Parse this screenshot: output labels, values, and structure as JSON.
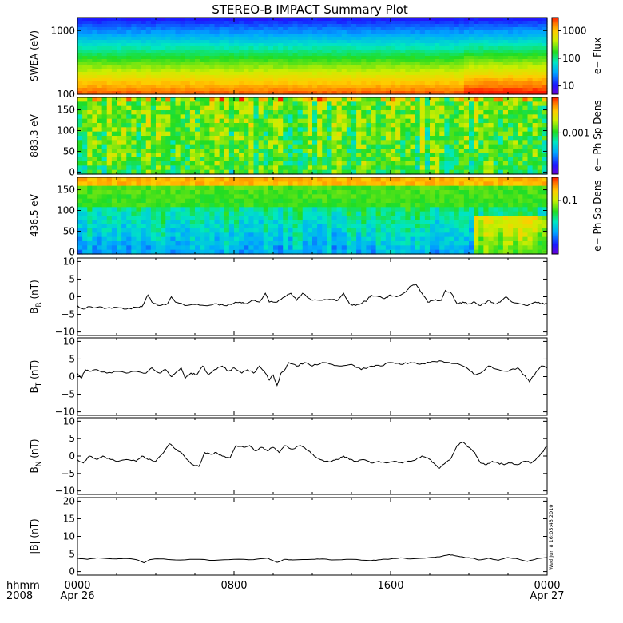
{
  "chart_data": {
    "type": "summary-plot",
    "title": "STEREO-B IMPACT Summary Plot",
    "time_axis": {
      "row_labels": [
        "hhmm",
        "2008"
      ],
      "ticks": [
        {
          "hour": 0,
          "label": "0000",
          "sublabel": "Apr 26"
        },
        {
          "hour": 8,
          "label": "0800",
          "sublabel": ""
        },
        {
          "hour": 16,
          "label": "1600",
          "sublabel": ""
        },
        {
          "hour": 24,
          "label": "0000",
          "sublabel": "Apr 27"
        }
      ],
      "range_hours": [
        0,
        24
      ]
    },
    "side_stamp": "Wed Jun 8 16:05:43 2010",
    "spectrograms": [
      {
        "id": "swea",
        "ylabel": "SWEA (eV)",
        "scale": "log",
        "ylim": [
          100,
          1600
        ],
        "yticks": [
          {
            "v": 100,
            "t": "100"
          },
          {
            "v": 1000,
            "t": "1000"
          }
        ],
        "colorbar": {
          "label": "e− Flux",
          "scale": "log",
          "range": [
            5,
            3000
          ],
          "ticks": [
            {
              "v": 10,
              "t": "10"
            },
            {
              "v": 100,
              "t": "100"
            },
            {
              "v": 1000,
              "t": "1000"
            }
          ]
        }
      },
      {
        "id": "pad883",
        "ylabel": "883.3 eV",
        "scale": "linear",
        "ylim": [
          -5,
          180
        ],
        "yticks": [
          {
            "v": 0,
            "t": "0"
          },
          {
            "v": 50,
            "t": "50"
          },
          {
            "v": 100,
            "t": "100"
          },
          {
            "v": 150,
            "t": "150"
          }
        ],
        "colorbar": {
          "label": "e− Ph Sp Dens",
          "scale": "log",
          "range": [
            0.0002,
            0.004
          ],
          "ticks": [
            {
              "v": 0.001,
              "t": "0.001"
            }
          ]
        }
      },
      {
        "id": "pad436",
        "ylabel": "436.5 eV",
        "scale": "linear",
        "ylim": [
          -5,
          180
        ],
        "yticks": [
          {
            "v": 0,
            "t": "0"
          },
          {
            "v": 50,
            "t": "50"
          },
          {
            "v": 100,
            "t": "100"
          },
          {
            "v": 150,
            "t": "150"
          }
        ],
        "colorbar": {
          "label": "e− Ph Sp Dens",
          "scale": "log",
          "range": [
            0.02,
            0.2
          ],
          "ticks": [
            {
              "v": 0.1,
              "t": "0.1"
            }
          ]
        }
      }
    ],
    "lines": [
      {
        "id": "br",
        "ylabel_main": "B",
        "ylabel_sub": "R",
        "ylabel_unit": " (nT)",
        "ylim": [
          -11,
          11
        ],
        "yticks": [
          {
            "v": -10,
            "t": "−10"
          },
          {
            "v": -5,
            "t": "−5"
          },
          {
            "v": 0,
            "t": "0"
          },
          {
            "v": 5,
            "t": "5"
          },
          {
            "v": 10,
            "t": "10"
          }
        ],
        "knots": [
          [
            0,
            -2.5
          ],
          [
            0.3,
            -3.5
          ],
          [
            0.6,
            -2.8
          ],
          [
            1,
            -3
          ],
          [
            1.5,
            -3.2
          ],
          [
            2,
            -3
          ],
          [
            2.5,
            -3.5
          ],
          [
            3,
            -3
          ],
          [
            3.3,
            -2.8
          ],
          [
            3.6,
            0.5
          ],
          [
            3.8,
            -1.5
          ],
          [
            4.2,
            -2.5
          ],
          [
            4.6,
            -2
          ],
          [
            4.8,
            0
          ],
          [
            5,
            -1.5
          ],
          [
            5.3,
            -1.8
          ],
          [
            5.5,
            -2.5
          ],
          [
            6,
            -2.2
          ],
          [
            6.5,
            -2.5
          ],
          [
            7,
            -2
          ],
          [
            7.5,
            -2.5
          ],
          [
            8,
            -1.8
          ],
          [
            8.3,
            -1.5
          ],
          [
            8.6,
            -2
          ],
          [
            9,
            -1
          ],
          [
            9.3,
            -1.5
          ],
          [
            9.6,
            1
          ],
          [
            9.8,
            -1.5
          ],
          [
            10.2,
            -1.5
          ],
          [
            10.6,
            0
          ],
          [
            10.9,
            1
          ],
          [
            11.2,
            -1
          ],
          [
            11.5,
            1
          ],
          [
            12,
            -1
          ],
          [
            12.5,
            -1
          ],
          [
            13,
            -0.8
          ],
          [
            13.3,
            -1
          ],
          [
            13.6,
            1
          ],
          [
            13.9,
            -2
          ],
          [
            14.2,
            -2.5
          ],
          [
            14.6,
            -1.5
          ],
          [
            14.8,
            -1
          ],
          [
            15,
            0.5
          ],
          [
            15.4,
            0
          ],
          [
            15.7,
            -0.5
          ],
          [
            16,
            0.5
          ],
          [
            16.3,
            0
          ],
          [
            16.8,
            1.5
          ],
          [
            17,
            3
          ],
          [
            17.3,
            3.5
          ],
          [
            17.6,
            1
          ],
          [
            17.9,
            -1.5
          ],
          [
            18.2,
            -1
          ],
          [
            18.6,
            -1
          ],
          [
            18.8,
            1.8
          ],
          [
            19.1,
            1
          ],
          [
            19.4,
            -2
          ],
          [
            19.7,
            -1.5
          ],
          [
            20,
            -2
          ],
          [
            20.3,
            -1.5
          ],
          [
            20.6,
            -2.5
          ],
          [
            21,
            -1
          ],
          [
            21.3,
            -2
          ],
          [
            21.6,
            -1.5
          ],
          [
            21.9,
            0
          ],
          [
            22.2,
            -1.5
          ],
          [
            22.6,
            -2
          ],
          [
            23,
            -2.5
          ],
          [
            23.4,
            -1.5
          ],
          [
            23.7,
            -2
          ],
          [
            24,
            -2
          ]
        ]
      },
      {
        "id": "bt",
        "ylabel_main": "B",
        "ylabel_sub": "T",
        "ylabel_unit": " (nT)",
        "ylim": [
          -11,
          11
        ],
        "yticks": [
          {
            "v": -10,
            "t": "−10"
          },
          {
            "v": -5,
            "t": "−5"
          },
          {
            "v": 0,
            "t": "0"
          },
          {
            "v": 5,
            "t": "5"
          },
          {
            "v": 10,
            "t": "10"
          }
        ],
        "knots": [
          [
            0,
            1
          ],
          [
            0.2,
            -0.5
          ],
          [
            0.4,
            2
          ],
          [
            0.6,
            1.5
          ],
          [
            1,
            2
          ],
          [
            1.5,
            1
          ],
          [
            2,
            1.5
          ],
          [
            2.5,
            1
          ],
          [
            3,
            1.5
          ],
          [
            3.5,
            1
          ],
          [
            3.8,
            2.5
          ],
          [
            4.2,
            1
          ],
          [
            4.5,
            2
          ],
          [
            4.8,
            0
          ],
          [
            5,
            1
          ],
          [
            5.3,
            2.5
          ],
          [
            5.5,
            -0.5
          ],
          [
            5.8,
            1
          ],
          [
            6.1,
            0.5
          ],
          [
            6.4,
            3
          ],
          [
            6.7,
            0.5
          ],
          [
            7,
            2
          ],
          [
            7.4,
            3
          ],
          [
            7.7,
            1.5
          ],
          [
            8,
            2.5
          ],
          [
            8.4,
            1
          ],
          [
            8.7,
            2
          ],
          [
            9,
            1
          ],
          [
            9.3,
            3
          ],
          [
            9.6,
            1
          ],
          [
            9.8,
            -1
          ],
          [
            10,
            0.5
          ],
          [
            10.2,
            -2.5
          ],
          [
            10.4,
            1
          ],
          [
            10.6,
            2
          ],
          [
            10.8,
            4
          ],
          [
            11.2,
            3
          ],
          [
            11.6,
            4
          ],
          [
            12,
            3
          ],
          [
            12.5,
            4
          ],
          [
            13,
            3.5
          ],
          [
            13.5,
            3
          ],
          [
            14,
            3.5
          ],
          [
            14.5,
            2
          ],
          [
            15,
            3
          ],
          [
            15.5,
            3
          ],
          [
            16,
            4
          ],
          [
            16.5,
            3.5
          ],
          [
            17,
            4
          ],
          [
            17.5,
            3.5
          ],
          [
            18,
            4
          ],
          [
            18.5,
            4.5
          ],
          [
            19,
            4
          ],
          [
            19.5,
            3.5
          ],
          [
            20,
            2
          ],
          [
            20.3,
            0.5
          ],
          [
            20.6,
            1
          ],
          [
            21,
            3
          ],
          [
            21.5,
            2
          ],
          [
            22,
            1.5
          ],
          [
            22.5,
            2.5
          ],
          [
            22.8,
            0.5
          ],
          [
            23.1,
            -1.5
          ],
          [
            23.4,
            1
          ],
          [
            23.7,
            3
          ],
          [
            24,
            2.5
          ]
        ]
      },
      {
        "id": "bn",
        "ylabel_main": "B",
        "ylabel_sub": "N",
        "ylabel_unit": " (nT)",
        "ylim": [
          -11,
          11
        ],
        "yticks": [
          {
            "v": -10,
            "t": "−10"
          },
          {
            "v": -5,
            "t": "−5"
          },
          {
            "v": 0,
            "t": "0"
          },
          {
            "v": 5,
            "t": "5"
          },
          {
            "v": 10,
            "t": "10"
          }
        ],
        "knots": [
          [
            0,
            -1
          ],
          [
            0.3,
            -2
          ],
          [
            0.6,
            0
          ],
          [
            1,
            -1
          ],
          [
            1.3,
            0
          ],
          [
            1.7,
            -1
          ],
          [
            2.1,
            -1.5
          ],
          [
            2.5,
            -1
          ],
          [
            3,
            -1.5
          ],
          [
            3.3,
            0
          ],
          [
            3.6,
            -1
          ],
          [
            4,
            -1.5
          ],
          [
            4.4,
            1
          ],
          [
            4.7,
            3.5
          ],
          [
            5,
            2
          ],
          [
            5.3,
            1
          ],
          [
            5.6,
            -1
          ],
          [
            5.9,
            -2.5
          ],
          [
            6.2,
            -3
          ],
          [
            6.5,
            1
          ],
          [
            6.8,
            0.5
          ],
          [
            7.1,
            1
          ],
          [
            7.4,
            0
          ],
          [
            7.8,
            -0.5
          ],
          [
            8.1,
            3
          ],
          [
            8.5,
            2.5
          ],
          [
            8.8,
            3
          ],
          [
            9.1,
            1.5
          ],
          [
            9.4,
            2.5
          ],
          [
            9.7,
            1.5
          ],
          [
            10,
            2.5
          ],
          [
            10.3,
            1
          ],
          [
            10.6,
            3
          ],
          [
            11,
            2
          ],
          [
            11.4,
            3
          ],
          [
            11.8,
            1.5
          ],
          [
            12.1,
            0
          ],
          [
            12.4,
            -1
          ],
          [
            12.7,
            -1.5
          ],
          [
            13,
            -1.5
          ],
          [
            13.3,
            -1
          ],
          [
            13.6,
            0
          ],
          [
            13.9,
            -1
          ],
          [
            14.2,
            -1.5
          ],
          [
            14.6,
            -1
          ],
          [
            15,
            -2
          ],
          [
            15.4,
            -1.5
          ],
          [
            15.8,
            -2
          ],
          [
            16.2,
            -1.5
          ],
          [
            16.6,
            -2
          ],
          [
            17,
            -1.5
          ],
          [
            17.3,
            -1
          ],
          [
            17.6,
            0
          ],
          [
            17.9,
            -0.5
          ],
          [
            18.2,
            -2
          ],
          [
            18.5,
            -3.5
          ],
          [
            18.8,
            -2
          ],
          [
            19.1,
            -0.5
          ],
          [
            19.4,
            3
          ],
          [
            19.7,
            4
          ],
          [
            20,
            2.5
          ],
          [
            20.3,
            1
          ],
          [
            20.6,
            -2
          ],
          [
            20.9,
            -2.5
          ],
          [
            21.2,
            -1.5
          ],
          [
            21.5,
            -2
          ],
          [
            21.8,
            -2.5
          ],
          [
            22.1,
            -2
          ],
          [
            22.5,
            -2.5
          ],
          [
            22.9,
            -1.5
          ],
          [
            23.2,
            -2
          ],
          [
            23.6,
            0
          ],
          [
            24,
            3
          ]
        ]
      },
      {
        "id": "bmag",
        "ylabel_main": "|B|",
        "ylabel_sub": "",
        "ylabel_unit": " (nT)",
        "ylim": [
          -1,
          21
        ],
        "yticks": [
          {
            "v": 0,
            "t": "0"
          },
          {
            "v": 5,
            "t": "5"
          },
          {
            "v": 10,
            "t": "10"
          },
          {
            "v": 15,
            "t": "15"
          },
          {
            "v": 20,
            "t": "20"
          }
        ],
        "knots": [
          [
            0,
            3.8
          ],
          [
            0.5,
            3.5
          ],
          [
            1,
            3.9
          ],
          [
            2,
            3.6
          ],
          [
            2.5,
            3.7
          ],
          [
            3,
            3.4
          ],
          [
            3.4,
            2.5
          ],
          [
            3.7,
            3.4
          ],
          [
            4.2,
            3.6
          ],
          [
            5,
            3.3
          ],
          [
            6,
            3.5
          ],
          [
            7,
            3.2
          ],
          [
            8,
            3.5
          ],
          [
            9,
            3.4
          ],
          [
            9.7,
            3.8
          ],
          [
            10,
            3.1
          ],
          [
            10.2,
            2.6
          ],
          [
            10.6,
            3.5
          ],
          [
            11,
            3.3
          ],
          [
            12,
            3.5
          ],
          [
            12.5,
            3.6
          ],
          [
            13,
            3.3
          ],
          [
            14,
            3.5
          ],
          [
            15,
            3.1
          ],
          [
            15.5,
            3.4
          ],
          [
            16,
            3.6
          ],
          [
            16.5,
            3.9
          ],
          [
            17,
            3.6
          ],
          [
            18,
            4
          ],
          [
            18.5,
            4.2
          ],
          [
            19,
            4.8
          ],
          [
            19.3,
            4.5
          ],
          [
            19.8,
            4
          ],
          [
            20.2,
            3.8
          ],
          [
            20.5,
            3.3
          ],
          [
            21,
            3.8
          ],
          [
            21.5,
            3.2
          ],
          [
            22,
            4
          ],
          [
            22.5,
            3.6
          ],
          [
            23,
            2.9
          ],
          [
            23.5,
            3.7
          ],
          [
            24,
            4
          ]
        ]
      }
    ]
  }
}
